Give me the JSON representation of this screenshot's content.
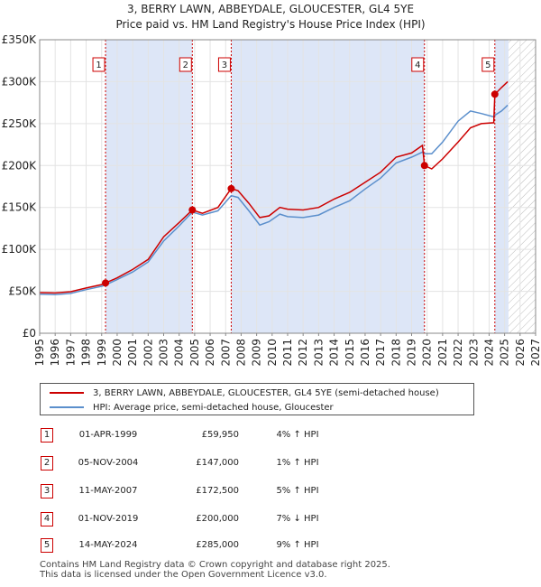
{
  "chart_data": {
    "type": "line",
    "title": "3, BERRY LAWN, ABBEYDALE, GLOUCESTER, GL4 5YE",
    "subtitle": "Price paid vs. HM Land Registry's House Price Index (HPI)",
    "xlim": [
      1995,
      2027
    ],
    "ylim": [
      0,
      350000
    ],
    "x_ticks": [
      1995,
      1996,
      1997,
      1998,
      1999,
      2000,
      2001,
      2002,
      2003,
      2004,
      2005,
      2006,
      2007,
      2008,
      2009,
      2010,
      2011,
      2012,
      2013,
      2014,
      2015,
      2016,
      2017,
      2018,
      2019,
      2020,
      2021,
      2022,
      2023,
      2024,
      2025,
      2026,
      2027
    ],
    "y_ticks": [
      {
        "value": 0,
        "label": "£0"
      },
      {
        "value": 50000,
        "label": "£50K"
      },
      {
        "value": 100000,
        "label": "£100K"
      },
      {
        "value": 150000,
        "label": "£150K"
      },
      {
        "value": 200000,
        "label": "£200K"
      },
      {
        "value": 250000,
        "label": "£250K"
      },
      {
        "value": 300000,
        "label": "£300K"
      },
      {
        "value": 350000,
        "label": "£350K"
      }
    ],
    "owned_bands": [
      [
        1999.25,
        2004.85
      ],
      [
        2007.36,
        2019.83
      ],
      [
        2024.37,
        2025.25
      ]
    ],
    "projection_start": 2025.25,
    "series": [
      {
        "name": "3, BERRY LAWN, ABBEYDALE, GLOUCESTER, GL4 5YE (semi-detached house)",
        "color": "#cc0000",
        "points": [
          [
            1995.0,
            48500
          ],
          [
            1996.0,
            48000
          ],
          [
            1997.0,
            49500
          ],
          [
            1998.0,
            54000
          ],
          [
            1999.0,
            58000
          ],
          [
            1999.25,
            59950
          ],
          [
            2000.0,
            66000
          ],
          [
            2001.0,
            76000
          ],
          [
            2002.0,
            88000
          ],
          [
            2003.0,
            115000
          ],
          [
            2004.0,
            132000
          ],
          [
            2004.85,
            147000
          ],
          [
            2005.5,
            143000
          ],
          [
            2006.5,
            150000
          ],
          [
            2007.36,
            172500
          ],
          [
            2007.8,
            170000
          ],
          [
            2008.5,
            155000
          ],
          [
            2009.2,
            138000
          ],
          [
            2009.8,
            140000
          ],
          [
            2010.5,
            150000
          ],
          [
            2011.0,
            148000
          ],
          [
            2012.0,
            147000
          ],
          [
            2013.0,
            150000
          ],
          [
            2014.0,
            160000
          ],
          [
            2015.0,
            168000
          ],
          [
            2016.0,
            180000
          ],
          [
            2017.0,
            192000
          ],
          [
            2018.0,
            210000
          ],
          [
            2019.0,
            215000
          ],
          [
            2019.7,
            224000
          ],
          [
            2019.83,
            200000
          ],
          [
            2020.3,
            196000
          ],
          [
            2021.0,
            208000
          ],
          [
            2022.0,
            228000
          ],
          [
            2022.8,
            245000
          ],
          [
            2023.5,
            250000
          ],
          [
            2024.3,
            251000
          ],
          [
            2024.37,
            285000
          ],
          [
            2024.8,
            293000
          ],
          [
            2025.2,
            300000
          ]
        ]
      },
      {
        "name": "HPI: Average price, semi-detached house, Gloucester",
        "color": "#5b8fcc",
        "points": [
          [
            1995.0,
            46500
          ],
          [
            1996.0,
            46000
          ],
          [
            1997.0,
            47500
          ],
          [
            1998.0,
            52000
          ],
          [
            1999.0,
            56000
          ],
          [
            1999.25,
            57500
          ],
          [
            2000.0,
            64000
          ],
          [
            2001.0,
            73000
          ],
          [
            2002.0,
            85000
          ],
          [
            2003.0,
            110000
          ],
          [
            2004.0,
            128000
          ],
          [
            2004.85,
            144500
          ],
          [
            2005.5,
            141000
          ],
          [
            2006.5,
            146000
          ],
          [
            2007.36,
            164000
          ],
          [
            2007.8,
            162000
          ],
          [
            2008.5,
            146000
          ],
          [
            2009.2,
            129000
          ],
          [
            2009.8,
            133000
          ],
          [
            2010.5,
            142000
          ],
          [
            2011.0,
            139000
          ],
          [
            2012.0,
            138000
          ],
          [
            2013.0,
            141000
          ],
          [
            2014.0,
            150000
          ],
          [
            2015.0,
            158000
          ],
          [
            2016.0,
            172000
          ],
          [
            2017.0,
            185000
          ],
          [
            2018.0,
            203000
          ],
          [
            2019.0,
            210000
          ],
          [
            2019.7,
            216000
          ],
          [
            2019.83,
            214000
          ],
          [
            2020.3,
            214000
          ],
          [
            2021.0,
            228000
          ],
          [
            2022.0,
            253000
          ],
          [
            2022.8,
            265000
          ],
          [
            2023.5,
            262000
          ],
          [
            2024.3,
            258000
          ],
          [
            2024.37,
            260000
          ],
          [
            2024.8,
            265000
          ],
          [
            2025.2,
            272000
          ]
        ]
      }
    ],
    "sales": [
      {
        "num": "1",
        "x": 1999.25,
        "y": 59950
      },
      {
        "num": "2",
        "x": 2004.85,
        "y": 147000
      },
      {
        "num": "3",
        "x": 2007.36,
        "y": 172500
      },
      {
        "num": "4",
        "x": 2019.83,
        "y": 200000
      },
      {
        "num": "5",
        "x": 2024.37,
        "y": 285000
      }
    ]
  },
  "legend": {
    "property": "3, BERRY LAWN, ABBEYDALE, GLOUCESTER, GL4 5YE (semi-detached house)",
    "hpi": "HPI: Average price, semi-detached house, Gloucester"
  },
  "transactions": [
    {
      "num": "1",
      "date": "01-APR-1999",
      "price": "£59,950",
      "hpi": "4% ↑ HPI"
    },
    {
      "num": "2",
      "date": "05-NOV-2004",
      "price": "£147,000",
      "hpi": "1% ↑ HPI"
    },
    {
      "num": "3",
      "date": "11-MAY-2007",
      "price": "£172,500",
      "hpi": "5% ↑ HPI"
    },
    {
      "num": "4",
      "date": "01-NOV-2019",
      "price": "£200,000",
      "hpi": "7% ↓ HPI"
    },
    {
      "num": "5",
      "date": "14-MAY-2024",
      "price": "£285,000",
      "hpi": "9% ↑ HPI"
    }
  ],
  "footer": {
    "line1": "Contains HM Land Registry data © Crown copyright and database right 2025.",
    "line2": "This data is licensed under the Open Government Licence v3.0."
  },
  "colors": {
    "property": "#cc0000",
    "hpi": "#5b8fcc",
    "band": "#dde6f7"
  }
}
